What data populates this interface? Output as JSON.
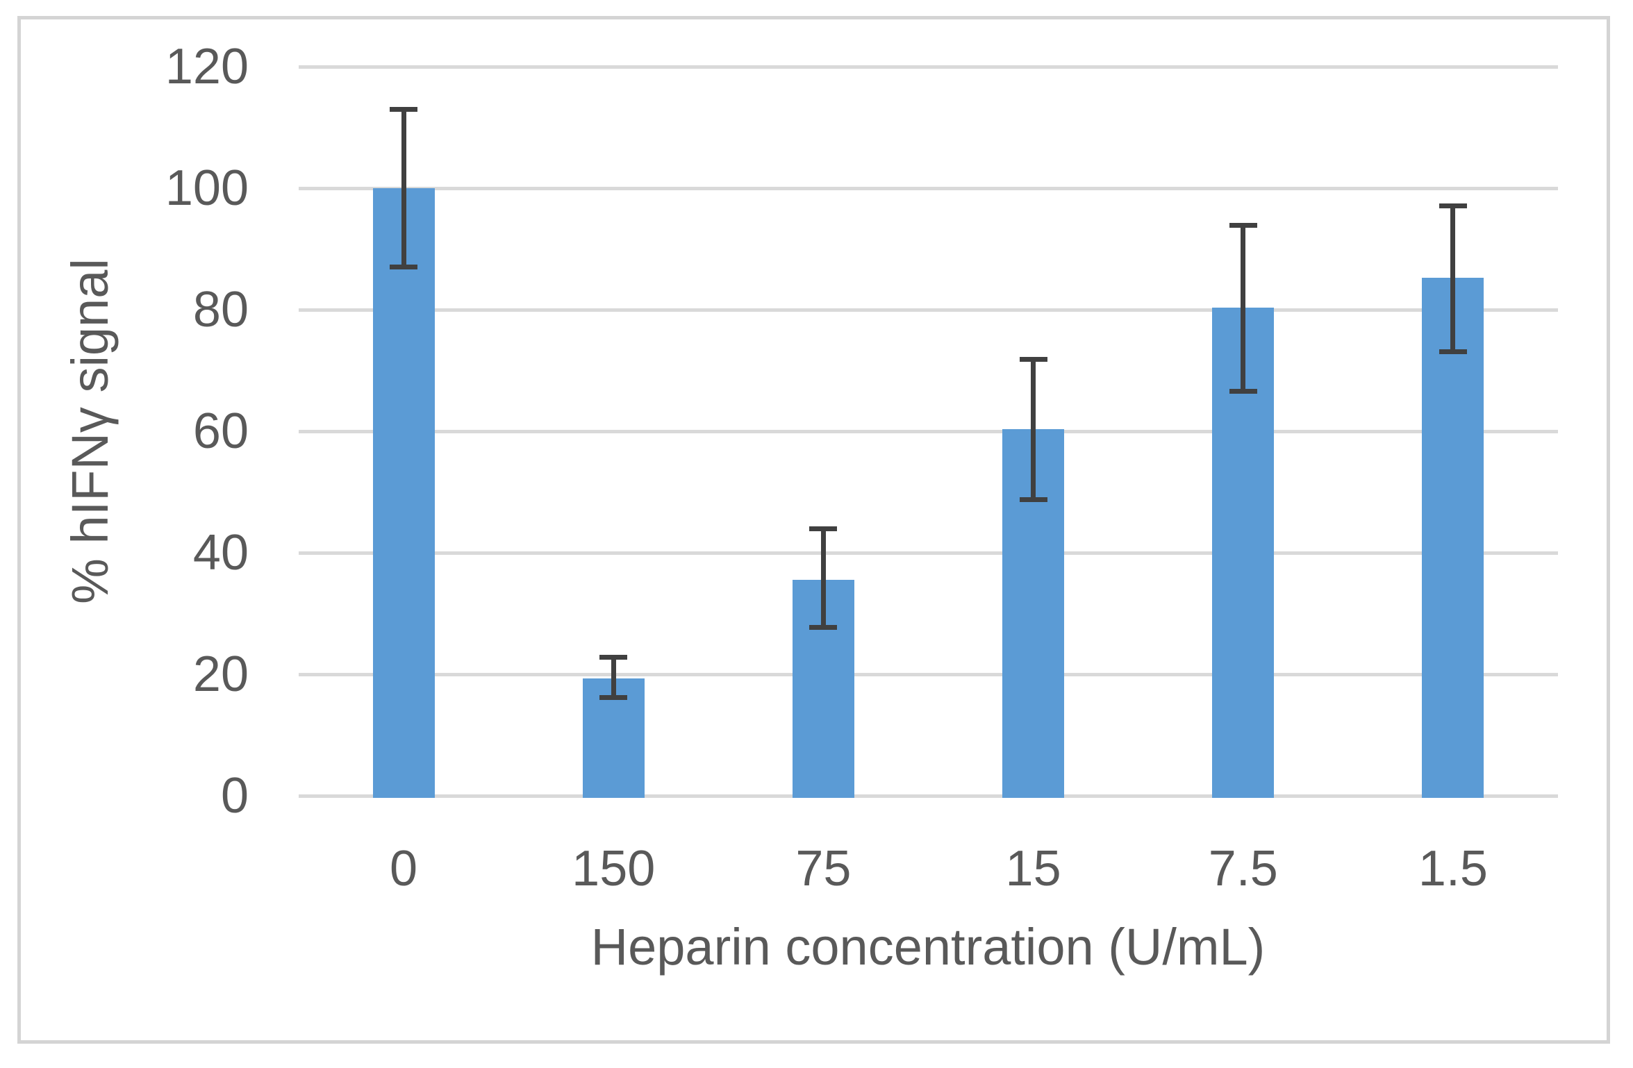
{
  "chart_data": {
    "type": "bar",
    "title": "",
    "xlabel": "Heparin concentration (U/mL)",
    "ylabel": "% hIFNγ signal",
    "categories": [
      "0",
      "150",
      "75",
      "15",
      "7.5",
      "1.5"
    ],
    "values": [
      100,
      19.3,
      35.6,
      60.3,
      80.3,
      85.3
    ],
    "error_low": [
      87,
      16.2,
      27.7,
      48.8,
      66.6,
      73.1
    ],
    "error_high": [
      113,
      22.8,
      43.9,
      71.8,
      93.9,
      97.1
    ],
    "ylim": [
      0,
      120
    ],
    "ytick_step": 20,
    "ytick_labels": [
      "0",
      "20",
      "40",
      "60",
      "80",
      "100",
      "120"
    ],
    "grid": true,
    "legend": "none",
    "colors": {
      "bar_fill": "#5b9bd5",
      "error_bar": "#404040",
      "gridline": "#d9d9d9",
      "frame_border": "#d4d4d4",
      "text": "#595959",
      "background": "#ffffff"
    }
  }
}
